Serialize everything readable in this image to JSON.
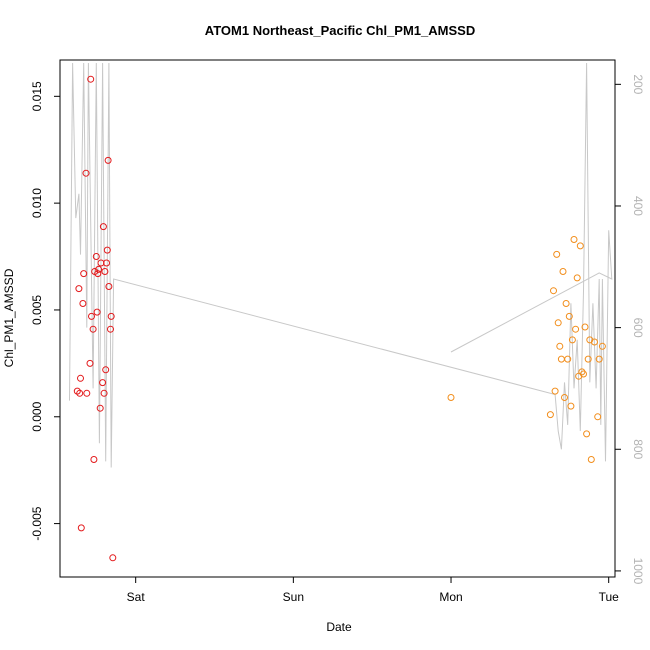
{
  "chart_data": {
    "type": "scatter",
    "title": "ATOM1 Northeast_Pacific Chl_PM1_AMSSD",
    "xlabel": "Date",
    "ylabel": "Chl_PM1_AMSSD",
    "x_axis": {
      "type": "day-of-week",
      "ticks": [
        "Sat",
        "Sun",
        "Mon",
        "Tue"
      ],
      "xlim_days": [
        -0.48,
        3.04
      ]
    },
    "y_axis": {
      "ylim": [
        -0.0075,
        0.0167
      ],
      "ticks": [
        "-0.005",
        "0.000",
        "0.005",
        "0.010",
        "0.015"
      ]
    },
    "secondary_y_axis": {
      "ticks": [
        "200",
        "400",
        "600",
        "800",
        "1000"
      ],
      "ylim": [
        1010,
        160
      ],
      "reversed": true,
      "color": "#b3b3b3"
    },
    "colors": {
      "series_1": "#e31a1c",
      "series_2": "#f28e1c",
      "track": "#c8c8c8",
      "axis": "#000000"
    },
    "grid": false,
    "series": [
      {
        "color": "#e31a1c",
        "marker": "open-circle",
        "points": [
          [
            -0.37,
            0.0012
          ],
          [
            -0.36,
            0.006
          ],
          [
            -0.355,
            0.0011
          ],
          [
            -0.35,
            0.0018
          ],
          [
            -0.345,
            -0.0052
          ],
          [
            -0.335,
            0.0053
          ],
          [
            -0.33,
            0.0067
          ],
          [
            -0.315,
            0.0114
          ],
          [
            -0.31,
            0.0011
          ],
          [
            -0.29,
            0.0025
          ],
          [
            -0.285,
            0.0158
          ],
          [
            -0.28,
            0.0047
          ],
          [
            -0.27,
            0.0041
          ],
          [
            -0.265,
            -0.002
          ],
          [
            -0.26,
            0.0068
          ],
          [
            -0.25,
            0.0075
          ],
          [
            -0.245,
            0.0049
          ],
          [
            -0.24,
            0.0067
          ],
          [
            -0.235,
            0.0069
          ],
          [
            -0.225,
            0.0004
          ],
          [
            -0.22,
            0.0072
          ],
          [
            -0.21,
            0.0016
          ],
          [
            -0.205,
            0.0089
          ],
          [
            -0.2,
            0.0011
          ],
          [
            -0.195,
            0.0068
          ],
          [
            -0.19,
            0.0022
          ],
          [
            -0.185,
            0.0072
          ],
          [
            -0.18,
            0.0078
          ],
          [
            -0.175,
            0.012
          ],
          [
            -0.17,
            0.0061
          ],
          [
            -0.16,
            0.0041
          ],
          [
            -0.155,
            0.0047
          ],
          [
            -0.145,
            -0.0066
          ]
        ]
      },
      {
        "color": "#f28e1c",
        "marker": "open-circle",
        "points": [
          [
            2.0,
            0.0009
          ],
          [
            2.63,
            0.0001
          ],
          [
            2.65,
            0.0059
          ],
          [
            2.66,
            0.0012
          ],
          [
            2.67,
            0.0076
          ],
          [
            2.68,
            0.0044
          ],
          [
            2.69,
            0.0033
          ],
          [
            2.7,
            0.0027
          ],
          [
            2.71,
            0.0068
          ],
          [
            2.72,
            0.0009
          ],
          [
            2.73,
            0.0053
          ],
          [
            2.74,
            0.0027
          ],
          [
            2.75,
            0.0047
          ],
          [
            2.76,
            0.0005
          ],
          [
            2.77,
            0.0036
          ],
          [
            2.78,
            0.0083
          ],
          [
            2.79,
            0.0041
          ],
          [
            2.8,
            0.0065
          ],
          [
            2.81,
            0.0019
          ],
          [
            2.82,
            0.008
          ],
          [
            2.83,
            0.0021
          ],
          [
            2.84,
            0.002
          ],
          [
            2.85,
            0.0042
          ],
          [
            2.86,
            -0.0008
          ],
          [
            2.87,
            0.0027
          ],
          [
            2.88,
            0.0036
          ],
          [
            2.89,
            -0.002
          ],
          [
            2.91,
            0.0035
          ],
          [
            2.93,
            0.0
          ],
          [
            2.94,
            0.0027
          ],
          [
            2.96,
            0.0033
          ]
        ]
      }
    ],
    "secondary_line": {
      "name": "",
      "points": [
        [
          -0.42,
          720
        ],
        [
          -0.4,
          165
        ],
        [
          -0.38,
          420
        ],
        [
          -0.36,
          380
        ],
        [
          -0.35,
          480
        ],
        [
          -0.33,
          165
        ],
        [
          -0.31,
          600
        ],
        [
          -0.3,
          165
        ],
        [
          -0.27,
          700
        ],
        [
          -0.25,
          165
        ],
        [
          -0.23,
          790
        ],
        [
          -0.21,
          165
        ],
        [
          -0.19,
          820
        ],
        [
          -0.17,
          165
        ],
        [
          -0.155,
          830
        ],
        [
          -0.14,
          520
        ],
        [
          2.66,
          710
        ],
        [
          2.68,
          770
        ],
        [
          2.7,
          800
        ],
        [
          2.72,
          690
        ],
        [
          2.74,
          760
        ],
        [
          2.76,
          560
        ],
        [
          2.78,
          700
        ],
        [
          2.8,
          620
        ],
        [
          2.82,
          770
        ],
        [
          2.84,
          540
        ],
        [
          2.86,
          165
        ],
        [
          2.87,
          430
        ],
        [
          2.88,
          690
        ],
        [
          2.9,
          560
        ],
        [
          2.92,
          700
        ],
        [
          2.94,
          520
        ],
        [
          2.95,
          760
        ],
        [
          2.96,
          520
        ],
        [
          2.98,
          820
        ],
        [
          3.0,
          440
        ],
        [
          3.02,
          520
        ],
        [
          2.94,
          510
        ],
        [
          2.0,
          640
        ]
      ]
    }
  }
}
